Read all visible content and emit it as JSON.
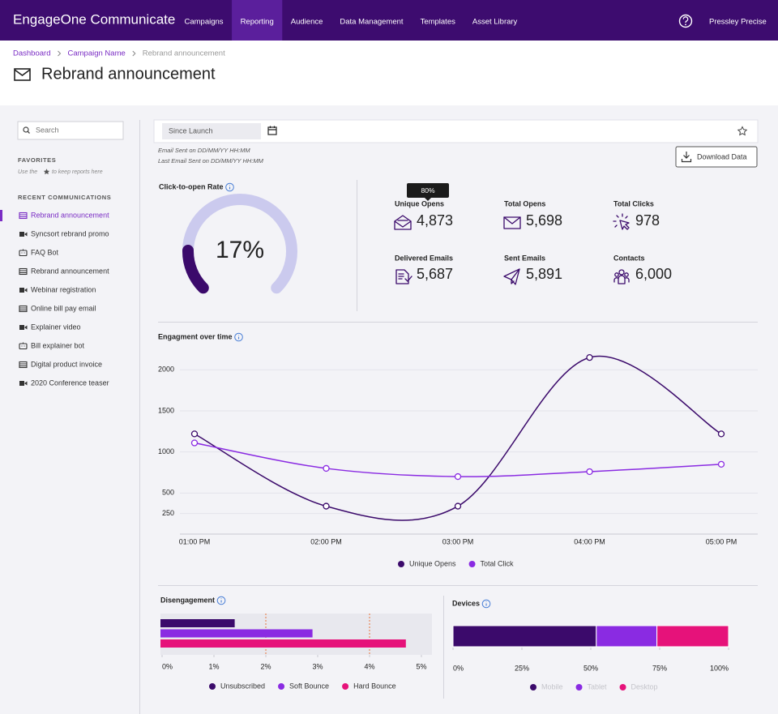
{
  "nav": {
    "brand": "EngageOne Communicate",
    "items": [
      "Campaigns",
      "Reporting",
      "Audience",
      "Data Management",
      "Templates",
      "Asset Library"
    ],
    "active": 1,
    "user": "Pressley Precise"
  },
  "breadcrumb": [
    "Dashboard",
    "Campaign Name",
    "Rebrand announcement"
  ],
  "page_title": "Rebrand announcement",
  "sidebar": {
    "search_placeholder": "Search",
    "favorites_heading": "FAVORITES",
    "favorites_hint": [
      "Use the",
      "to keep reports here"
    ],
    "recent_heading": "RECENT COMMUNICATIONS",
    "active": 0,
    "recent": [
      {
        "label": "Rebrand announcement",
        "icon": "email"
      },
      {
        "label": "Syncsort rebrand promo",
        "icon": "video"
      },
      {
        "label": "FAQ Bot",
        "icon": "bot"
      },
      {
        "label": "Rebrand announcement",
        "icon": "email"
      },
      {
        "label": "Webinar registration",
        "icon": "video"
      },
      {
        "label": "Online bill pay email",
        "icon": "email"
      },
      {
        "label": "Explainer video",
        "icon": "video"
      },
      {
        "label": "Bill explainer bot",
        "icon": "bot"
      },
      {
        "label": "Digital product invoice",
        "icon": "email"
      },
      {
        "label": "2020 Conference teaser",
        "icon": "video"
      }
    ]
  },
  "toolbar": {
    "date_filter": "Since Launch",
    "sent_info": [
      "Email Sent on DD/MM/YY HH:MM",
      "Last Email Sent on DD/MM/YY HH:MM"
    ],
    "download": "Download Data"
  },
  "metrics": {
    "tooltip": "80%",
    "items": [
      {
        "label": "Unique Opens",
        "value": "4,873",
        "icon": "opens"
      },
      {
        "label": "Total Opens",
        "value": "5,698",
        "icon": "envelope"
      },
      {
        "label": "Total Clicks",
        "value": "978",
        "icon": "click"
      },
      {
        "label": "Delivered Emails",
        "value": "5,687",
        "icon": "delivered"
      },
      {
        "label": "Sent Emails",
        "value": "5,891",
        "icon": "send"
      },
      {
        "label": "Contacts",
        "value": "6,000",
        "icon": "contacts"
      }
    ]
  },
  "chart_data": [
    {
      "type": "gauge",
      "title": "Click-to-open Rate",
      "value": 17,
      "value_label": "17%",
      "lim": [
        0,
        100
      ],
      "color": "#3b0a6b",
      "track_color": "#cbcaee"
    },
    {
      "type": "line",
      "title": "Engagment over time",
      "categories": [
        "01:00 PM",
        "02:00 PM",
        "03:00 PM",
        "04:00 PM",
        "05:00 PM"
      ],
      "series": [
        {
          "name": "Unique Opens",
          "color": "#3b0a6b",
          "values": [
            1220,
            340,
            340,
            2150,
            1220
          ]
        },
        {
          "name": "Total Click",
          "color": "#8a2be2",
          "values": [
            1110,
            800,
            700,
            760,
            850
          ]
        }
      ],
      "ylim": [
        0,
        2250
      ],
      "yticks": [
        250,
        500,
        1000,
        1500,
        2000
      ],
      "grid": true
    },
    {
      "type": "bar",
      "orientation": "horizontal",
      "title": "Disengagement",
      "series": [
        {
          "name": "Unsubscribed",
          "color": "#3b0a6b",
          "values": [
            1.4
          ]
        },
        {
          "name": "Soft Bounce",
          "color": "#8a2be2",
          "values": [
            2.9
          ]
        },
        {
          "name": "Hard Bounce",
          "color": "#e6127a",
          "values": [
            4.7
          ]
        }
      ],
      "xlim": [
        0,
        5
      ],
      "xticks": [
        {
          "value": 0,
          "label": "0%"
        },
        {
          "value": 1,
          "label": "1%"
        },
        {
          "value": 2,
          "label": "2%"
        },
        {
          "value": 3,
          "label": "3%"
        },
        {
          "value": 4,
          "label": "4%"
        },
        {
          "value": 5,
          "label": "5%"
        }
      ],
      "reference_lines": {
        "values": [
          2,
          4
        ],
        "color": "#e8743b"
      }
    },
    {
      "type": "stacked_bar",
      "title": "Devices",
      "series": [
        {
          "name": "Mobile",
          "color": "#3b0a6b",
          "values": [
            52
          ]
        },
        {
          "name": "Tablet",
          "color": "#8a2be2",
          "values": [
            22
          ]
        },
        {
          "name": "Desktop",
          "color": "#e6127a",
          "values": [
            26
          ]
        }
      ],
      "xlim": [
        0,
        100
      ],
      "xticks": [
        {
          "value": 0,
          "label": "0%"
        },
        {
          "value": 25,
          "label": "25%"
        },
        {
          "value": 50,
          "label": "50%"
        },
        {
          "value": 75,
          "label": "75%"
        },
        {
          "value": 100,
          "label": "100%"
        }
      ],
      "legend_text_color": "#c4c4ca"
    }
  ]
}
